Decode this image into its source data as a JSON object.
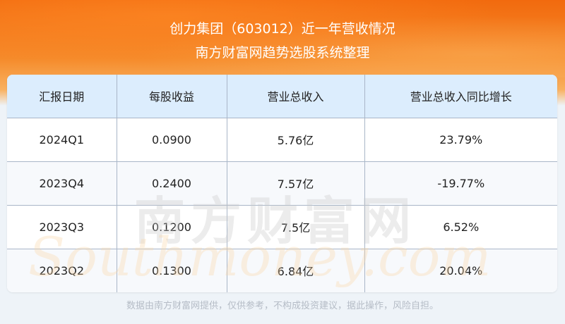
{
  "header": {
    "title": "创力集团（603012）近一年营收情况",
    "subtitle": "南方财富网趋势选股系统整理"
  },
  "table": {
    "columns": [
      "汇报日期",
      "每股收益",
      "营业总收入",
      "营业总收入同比增长"
    ],
    "rows": [
      [
        "2024Q1",
        "0.0900",
        "5.76亿",
        "23.79%"
      ],
      [
        "2023Q4",
        "0.2400",
        "7.57亿",
        "-19.77%"
      ],
      [
        "2023Q3",
        "0.1200",
        "7.5亿",
        "6.52%"
      ],
      [
        "2023Q2",
        "0.1300",
        "6.84亿",
        "20.04%"
      ]
    ]
  },
  "watermark": {
    "cn": "南方财富网",
    "en": "Southmoney.com"
  },
  "footer": "数据由南方财富网提供，仅供参考，不构成投资建议，据此操作，风险自担。",
  "colors": {
    "banner": "#f26a0e",
    "header_bg": "#dcedfd",
    "border": "#a9b6c8"
  }
}
